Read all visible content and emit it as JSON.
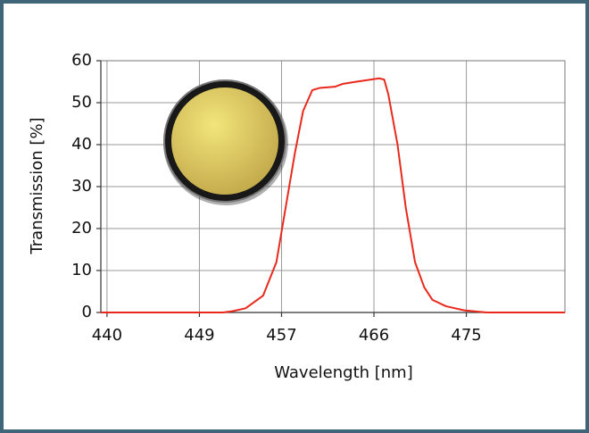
{
  "chart_data": {
    "type": "line",
    "x_label": "Wavelength [nm]",
    "y_label": "Transmission [%]",
    "x": [
      439.4,
      451.3,
      452.2,
      453.5,
      455.2,
      456.5,
      457.4,
      458.3,
      459.1,
      460.0,
      460.7,
      462.2,
      463.0,
      464.3,
      465.7,
      466.5,
      467.0,
      467.4,
      468.3,
      469.1,
      470.0,
      470.9,
      471.7,
      473.0,
      474.8,
      477.0,
      484.6
    ],
    "series": [
      {
        "name": "Transmission",
        "color": "#e8291c",
        "values": [
          0,
          0,
          0.3,
          1,
          4,
          12,
          25,
          38,
          48,
          53,
          53.5,
          53.8,
          54.5,
          55,
          55.5,
          55.8,
          55.5,
          52,
          40,
          25,
          12,
          6,
          3,
          1.5,
          0.5,
          0,
          0
        ]
      }
    ],
    "xlim": [
      439.4,
      484.6
    ],
    "xticks": [
      440,
      449,
      457,
      466,
      475
    ],
    "ylim": [
      0,
      60
    ],
    "yticks": [
      0,
      10,
      20,
      30,
      40,
      50,
      60
    ],
    "grid": true
  }
}
